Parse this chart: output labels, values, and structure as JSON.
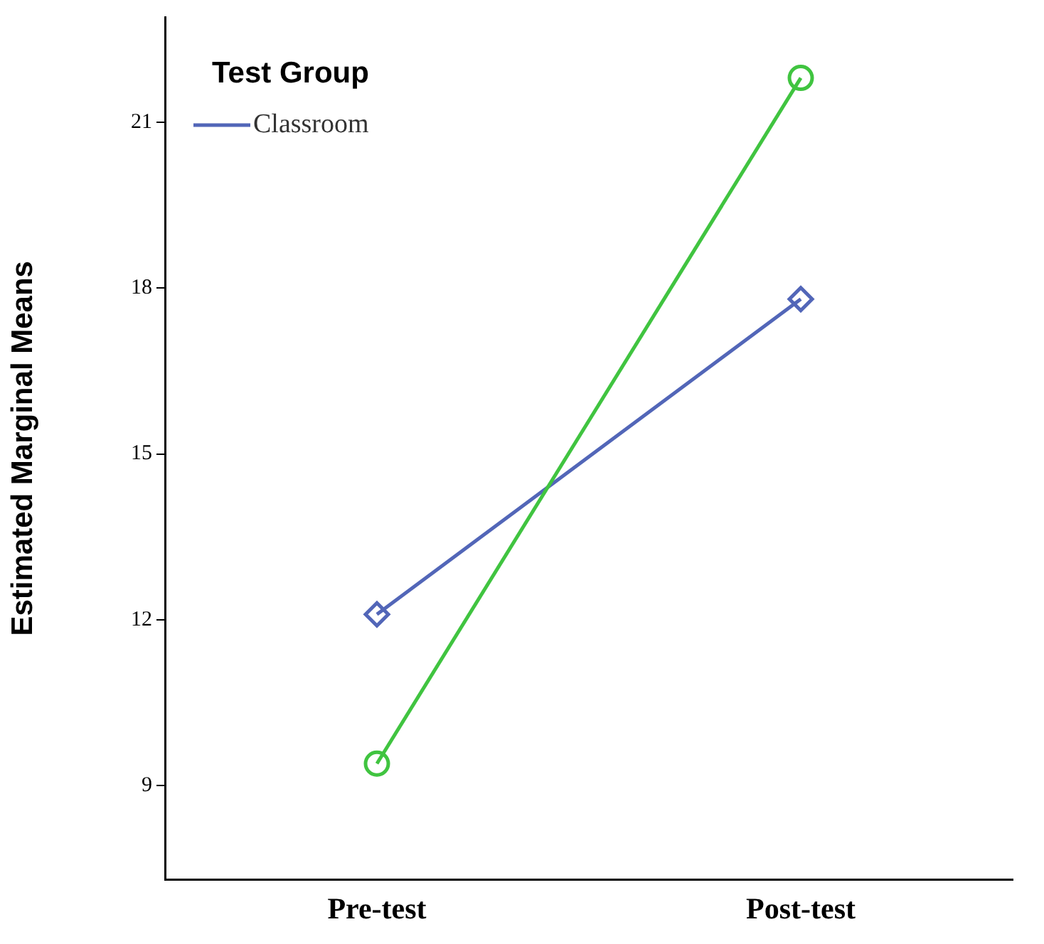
{
  "chart_data": {
    "type": "line",
    "ylabel": "Estimated Marginal Means",
    "legend_title": "Test Group",
    "categories": [
      "Pre-test",
      "Post-test"
    ],
    "series": [
      {
        "name": "Classroom",
        "color": "#5266b8",
        "values": [
          12.1,
          17.8
        ],
        "marker": "diamond"
      },
      {
        "color": "#40c440",
        "values": [
          9.4,
          21.8
        ],
        "marker": "circle"
      }
    ],
    "ylim": [
      7.3,
      22.9
    ],
    "yticks": [
      9,
      12,
      15,
      18,
      21
    ],
    "grid": false,
    "legend": "top left",
    "line_style": "solid"
  }
}
